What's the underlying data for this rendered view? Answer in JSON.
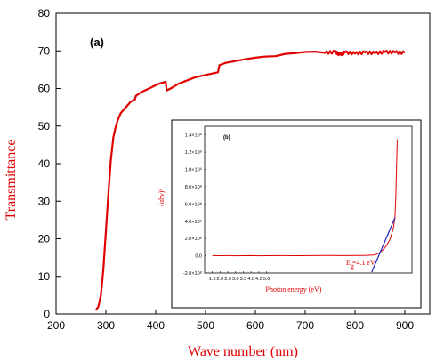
{
  "chart_data": [
    {
      "type": "line",
      "panel_label": "(a)",
      "xlabel": "Wave number (nm)",
      "ylabel": "Transmittance",
      "xlim": [
        200,
        950
      ],
      "ylim": [
        0,
        80
      ],
      "xticks": [
        200,
        300,
        400,
        500,
        600,
        700,
        800,
        900
      ],
      "yticks": [
        0,
        10,
        20,
        30,
        40,
        50,
        60,
        70,
        80
      ],
      "grid": false,
      "legend": "none",
      "line_color": "#e00000",
      "x": [
        280,
        285,
        290,
        295,
        300,
        305,
        310,
        315,
        320,
        325,
        330,
        340,
        350,
        358,
        360,
        365,
        375,
        390,
        405,
        420,
        422,
        430,
        445,
        460,
        480,
        500,
        525,
        528,
        540,
        560,
        580,
        600,
        620,
        640,
        660,
        680,
        700,
        720,
        740,
        760,
        770,
        780,
        800,
        820,
        840,
        860,
        880,
        900
      ],
      "y": [
        1,
        2,
        5,
        12,
        22,
        32,
        41,
        47,
        50,
        52,
        53.5,
        55,
        56.5,
        57,
        58,
        58.5,
        59.3,
        60.2,
        61.2,
        61.8,
        59.5,
        60,
        61.2,
        62,
        63,
        63.6,
        64.3,
        66.2,
        66.8,
        67.3,
        67.8,
        68.2,
        68.5,
        68.6,
        69.2,
        69.4,
        69.7,
        69.8,
        69.5,
        69.7,
        69.0,
        69.6,
        69.3,
        69.6,
        69.4,
        69.7,
        69.6,
        69.5
      ]
    },
    {
      "type": "line",
      "panel_label": "(b)",
      "xlabel": "Photon energy (eV)",
      "ylabel": "(αhν)²",
      "annotation": "E =4.1 eV",
      "annotation_sub": "g",
      "xtick_labels": [
        "1.5",
        "2.0",
        "2.5",
        "3.0",
        "3.5",
        "4.0",
        "4.5",
        "5.0"
      ],
      "ytick_labels": [
        "-2.0×10⁸",
        "0.0",
        "2.0×10⁸",
        "4.0×10⁸",
        "6.0×10⁸",
        "8.0×10⁸",
        "1.0×10⁹",
        "1.2×10⁹",
        "1.4×10⁹"
      ],
      "line_color": "#e00000",
      "fit_color": "#2020c0",
      "x": [
        1.5,
        2.0,
        2.5,
        3.0,
        3.5,
        4.0,
        4.5,
        5.0,
        6.0,
        7.0,
        8.0,
        9.0,
        10.0,
        11.0,
        11.5,
        12.0,
        12.3,
        12.6,
        12.8,
        13.0,
        13.1,
        13.2,
        13.25,
        13.3,
        13.35,
        13.4,
        13.45
      ],
      "y": [
        0.02,
        0.01,
        0.02,
        0.0,
        0.01,
        0.02,
        0.0,
        0.01,
        0.02,
        0.01,
        0.02,
        0.03,
        0.02,
        0.03,
        0.05,
        0.1,
        0.35,
        0.8,
        1.3,
        2.0,
        2.6,
        3.2,
        3.8,
        4.4,
        6.5,
        10.0,
        13.5
      ],
      "fit_x": [
        11.8,
        13.3
      ],
      "fit_y": [
        -1.9,
        4.4
      ],
      "y_unit_note": "values in units of 1×10⁸"
    }
  ]
}
